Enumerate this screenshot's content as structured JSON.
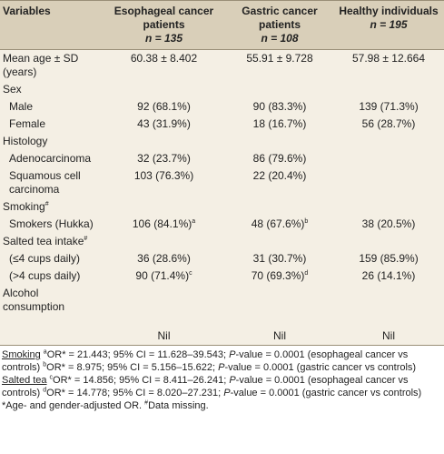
{
  "table": {
    "header": [
      {
        "label": "Variables"
      },
      {
        "label": "Esophageal cancer patients",
        "n": "n = 135"
      },
      {
        "label": "Gastric cancer patients",
        "n": "n = 108"
      },
      {
        "label": "Healthy individuals",
        "n": "n = 195"
      }
    ],
    "rows": [
      {
        "label": "Mean age ± SD (years)",
        "values": [
          {
            "text": "60.38 ± 8.402"
          },
          {
            "text": "55.91 ± 9.728"
          },
          {
            "text": "57.98 ± 12.664"
          }
        ]
      },
      {
        "label": "Sex"
      },
      {
        "label": "Male",
        "indent": true,
        "values": [
          {
            "text": "92 (68.1%)"
          },
          {
            "text": "90 (83.3%)"
          },
          {
            "text": "139 (71.3%)"
          }
        ]
      },
      {
        "label": "Female",
        "indent": true,
        "values": [
          {
            "text": "43 (31.9%)"
          },
          {
            "text": "18 (16.7%)"
          },
          {
            "text": "56 (28.7%)"
          }
        ]
      },
      {
        "label": "Histology"
      },
      {
        "label": "Adenocarcinoma",
        "indent": true,
        "values": [
          {
            "text": "32 (23.7%)"
          },
          {
            "text": "86 (79.6%)"
          }
        ]
      },
      {
        "label": "Squamous cell carcinoma",
        "indent": true,
        "values": [
          {
            "text": "103 (76.3%)"
          },
          {
            "text": "22 (20.4%)"
          }
        ]
      },
      {
        "label": "Smoking",
        "sup": "#"
      },
      {
        "label": "Smokers (Hukka)",
        "indent": true,
        "values": [
          {
            "text": "106 (84.1%)",
            "sup": "a"
          },
          {
            "text": "48 (67.6%)",
            "sup": "b"
          },
          {
            "text": "38 (20.5%)"
          }
        ]
      },
      {
        "label": "Salted tea intake",
        "sup": "#"
      },
      {
        "label": "(≤4 cups daily)",
        "indent": true,
        "values": [
          {
            "text": "36 (28.6%)"
          },
          {
            "text": "31 (30.7%)"
          },
          {
            "text": "159 (85.9%)"
          }
        ]
      },
      {
        "label": "(>4 cups daily)",
        "indent": true,
        "values": [
          {
            "text": "90 (71.4%)",
            "sup": "c"
          },
          {
            "text": "70 (69.3%)",
            "sup": "d"
          },
          {
            "text": "26 (14.1%)"
          }
        ]
      },
      {
        "label": "Alcohol consumption",
        "tall": true,
        "values": [
          {
            "text": "Nil"
          },
          {
            "text": "Nil"
          },
          {
            "text": "Nil"
          }
        ]
      }
    ]
  },
  "footnote": [
    [
      {
        "text": "Smoking",
        "format": "u"
      },
      {
        "text": "a",
        "format": "sup"
      },
      {
        "text": "OR* = 21.443; 95% CI = 11.628–39.543; "
      },
      {
        "text": "P",
        "format": "i"
      },
      {
        "text": "-value = 0.0001 (esophageal cancer vs controls) "
      },
      {
        "text": "b",
        "format": "sup"
      },
      {
        "text": "OR* = 8.975; 95% CI = 5.156–15.622; "
      },
      {
        "text": "P",
        "format": "i"
      },
      {
        "text": "-value = 0.0001 (gastric cancer vs controls) "
      },
      {
        "text": "Salted tea",
        "format": "u"
      },
      {
        "text": "c",
        "format": "sup"
      },
      {
        "text": "OR* = 14.856; 95% CI = 8.411–26.241; "
      },
      {
        "text": "P",
        "format": "i"
      },
      {
        "text": "-value = 0.0001 (esophageal cancer vs controls) "
      },
      {
        "text": "d",
        "format": "sup"
      },
      {
        "text": "OR* = 14.778; 95% CI = 8.020–27.231; "
      },
      {
        "text": "P",
        "format": "i"
      },
      {
        "text": "-value = 0.0001 (gastric cancer vs controls)"
      }
    ],
    [
      {
        "text": "*Age- and gender-adjusted OR. "
      },
      {
        "text": "#",
        "format": "sup"
      },
      {
        "text": "Data missing."
      }
    ]
  ]
}
